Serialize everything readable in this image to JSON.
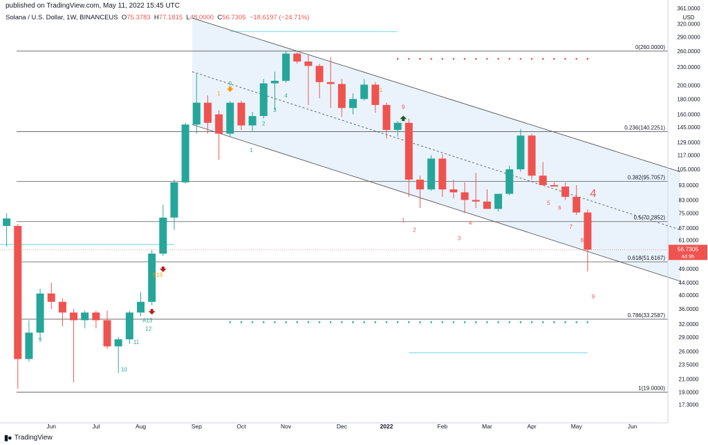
{
  "header": {
    "published": "published on TradingView.com, May 11, 2022 15:45 UTC",
    "symbol": "Solana / U.S. Dollar, 1W, BINANCEUS",
    "open_label": "O",
    "open": "75.3783",
    "high_label": "H",
    "high": "77.1815",
    "low_label": "L",
    "low": "48.0000",
    "close_label": "C",
    "close": "56.7305",
    "change": "−18.6197 (−24.71%)"
  },
  "footer": {
    "logo_text": "TradingView"
  },
  "colors": {
    "up": "#26a69a",
    "down": "#ef5350",
    "channel_fill": "#eaf3fb",
    "seq_orange": "#ff9800",
    "support_line": "#80deea"
  },
  "chart_data": {
    "type": "candlestick",
    "title": "Solana / U.S. Dollar, 1W, BINANCEUS",
    "y_scale": "log",
    "ylim": [
      16.0,
      361.0
    ],
    "y_axis_unit": "USD",
    "y_ticks": [
      "17.3000",
      "19.0000",
      "21.0000",
      "23.5000",
      "26.0000",
      "29.0000",
      "32.0000",
      "36.0000",
      "40.0000",
      "44.0000",
      "49.0000",
      "55.0000",
      "61.0000",
      "67.0000",
      "75.0000",
      "83.0000",
      "93.0000",
      "105.0000",
      "117.0000",
      "129.0000",
      "145.0000",
      "160.0000",
      "180.0000",
      "200.0000",
      "230.0000",
      "260.0000",
      "290.0000",
      "320.0000",
      "361.0000"
    ],
    "x_ticks": [
      {
        "label": "Jun",
        "i": 4
      },
      {
        "label": "Jul",
        "i": 8
      },
      {
        "label": "Aug",
        "i": 12
      },
      {
        "label": "Sep",
        "i": 17
      },
      {
        "label": "Oct",
        "i": 21
      },
      {
        "label": "Nov",
        "i": 25
      },
      {
        "label": "Dec",
        "i": 30
      },
      {
        "label": "2022",
        "i": 34
      },
      {
        "label": "Feb",
        "i": 39
      },
      {
        "label": "Mar",
        "i": 43
      },
      {
        "label": "Apr",
        "i": 47
      },
      {
        "label": "May",
        "i": 51
      },
      {
        "label": "Jun",
        "i": 56
      }
    ],
    "last_price_label": "56.7305",
    "countdown_label": "4d 9h",
    "candles": [
      {
        "o": 68.0,
        "h": 75.0,
        "l": 58.0,
        "c": 72.0
      },
      {
        "o": 68.0,
        "h": 69.0,
        "l": 19.5,
        "c": 24.5
      },
      {
        "o": 24.5,
        "h": 33.0,
        "l": 24.0,
        "c": 30.0
      },
      {
        "o": 30.0,
        "h": 42.0,
        "l": 28.5,
        "c": 40.5
      },
      {
        "o": 40.5,
        "h": 44.0,
        "l": 36.0,
        "c": 38.0
      },
      {
        "o": 38.0,
        "h": 39.0,
        "l": 31.5,
        "c": 35.0
      },
      {
        "o": 35.0,
        "h": 36.0,
        "l": 20.5,
        "c": 33.0
      },
      {
        "o": 33.0,
        "h": 35.5,
        "l": 31.0,
        "c": 35.0
      },
      {
        "o": 35.0,
        "h": 35.5,
        "l": 31.0,
        "c": 33.0
      },
      {
        "o": 33.0,
        "h": 35.5,
        "l": 26.5,
        "c": 27.0
      },
      {
        "o": 27.0,
        "h": 29.0,
        "l": 22.0,
        "c": 28.5
      },
      {
        "o": 28.5,
        "h": 35.5,
        "l": 27.5,
        "c": 35.0
      },
      {
        "o": 35.0,
        "h": 41.0,
        "l": 34.0,
        "c": 38.0
      },
      {
        "o": 38.0,
        "h": 56.5,
        "l": 37.0,
        "c": 55.0
      },
      {
        "o": 55.0,
        "h": 80.0,
        "l": 54.0,
        "c": 72.5
      },
      {
        "o": 72.5,
        "h": 97.0,
        "l": 66.0,
        "c": 95.0
      },
      {
        "o": 95.0,
        "h": 150.0,
        "l": 94.0,
        "c": 148.0
      },
      {
        "o": 148.0,
        "h": 218.0,
        "l": 138.0,
        "c": 175.0
      },
      {
        "o": 175.0,
        "h": 185.0,
        "l": 138.0,
        "c": 150.0
      },
      {
        "o": 160.0,
        "h": 165.0,
        "l": 113.0,
        "c": 138.0
      },
      {
        "o": 138.0,
        "h": 177.0,
        "l": 135.0,
        "c": 175.0
      },
      {
        "o": 175.0,
        "h": 178.0,
        "l": 142.0,
        "c": 147.0
      },
      {
        "o": 147.0,
        "h": 163.0,
        "l": 140.0,
        "c": 158.0
      },
      {
        "o": 158.0,
        "h": 210.0,
        "l": 155.0,
        "c": 203.0
      },
      {
        "o": 203.0,
        "h": 222.0,
        "l": 165.0,
        "c": 207.0
      },
      {
        "o": 207.0,
        "h": 260.0,
        "l": 204.0,
        "c": 255.0
      },
      {
        "o": 255.0,
        "h": 258.0,
        "l": 236.0,
        "c": 240.0
      },
      {
        "o": 240.0,
        "h": 252.0,
        "l": 172.0,
        "c": 232.0
      },
      {
        "o": 232.0,
        "h": 236.0,
        "l": 181.0,
        "c": 205.0
      },
      {
        "o": 205.0,
        "h": 248.0,
        "l": 168.0,
        "c": 202.0
      },
      {
        "o": 202.0,
        "h": 210.0,
        "l": 157.0,
        "c": 168.0
      },
      {
        "o": 168.0,
        "h": 188.0,
        "l": 160.0,
        "c": 180.0
      },
      {
        "o": 180.0,
        "h": 210.0,
        "l": 178.0,
        "c": 201.0
      },
      {
        "o": 201.0,
        "h": 205.0,
        "l": 162.0,
        "c": 172.0
      },
      {
        "o": 172.0,
        "h": 175.0,
        "l": 133.0,
        "c": 142.0
      },
      {
        "o": 142.0,
        "h": 152.0,
        "l": 135.0,
        "c": 150.0
      },
      {
        "o": 150.0,
        "h": 155.0,
        "l": 85.0,
        "c": 97.0
      },
      {
        "o": 97.0,
        "h": 100.0,
        "l": 78.0,
        "c": 90.0
      },
      {
        "o": 90.0,
        "h": 117.0,
        "l": 89.0,
        "c": 114.0
      },
      {
        "o": 114.0,
        "h": 118.0,
        "l": 85.0,
        "c": 90.0
      },
      {
        "o": 90.0,
        "h": 97.0,
        "l": 84.0,
        "c": 88.0
      },
      {
        "o": 88.0,
        "h": 95.0,
        "l": 75.0,
        "c": 83.0
      },
      {
        "o": 83.0,
        "h": 102.0,
        "l": 78.0,
        "c": 82.0
      },
      {
        "o": 82.0,
        "h": 90.0,
        "l": 78.0,
        "c": 77.5
      },
      {
        "o": 77.5,
        "h": 87.0,
        "l": 76.0,
        "c": 87.0
      },
      {
        "o": 87.0,
        "h": 108.0,
        "l": 86.0,
        "c": 105.0
      },
      {
        "o": 105.0,
        "h": 143.0,
        "l": 103.0,
        "c": 136.0
      },
      {
        "o": 136.0,
        "h": 138.0,
        "l": 97.0,
        "c": 100.0
      },
      {
        "o": 100.0,
        "h": 111.0,
        "l": 95.0,
        "c": 93.0
      },
      {
        "o": 93.0,
        "h": 95.0,
        "l": 92.0,
        "c": 92.0
      },
      {
        "o": 92.0,
        "h": 95.0,
        "l": 83.0,
        "c": 85.0
      },
      {
        "o": 85.0,
        "h": 93.0,
        "l": 74.0,
        "c": 75.4
      },
      {
        "o": 75.4,
        "h": 77.2,
        "l": 48.0,
        "c": 56.7
      }
    ],
    "fib_levels": [
      {
        "ratio": "0",
        "price": 260.0,
        "label": "0(260.0000)"
      },
      {
        "ratio": "0.236",
        "price": 140.2251,
        "label": "0.236(140.2251)"
      },
      {
        "ratio": "0.382",
        "price": 95.7057,
        "label": "0.382(95.7057)"
      },
      {
        "ratio": "0.5",
        "price": 70.2852,
        "label": "0.5(70.2852)"
      },
      {
        "ratio": "0.618",
        "price": 51.6167,
        "label": "0.618(51.6167)"
      },
      {
        "ratio": "0.786",
        "price": 33.2587,
        "label": "0.786(33.2587)"
      },
      {
        "ratio": "1",
        "price": 19.0,
        "label": "1(19.0000)"
      }
    ],
    "channel": {
      "upper": [
        {
          "i": 16.6,
          "p": 335.0
        },
        {
          "i": 60.3,
          "p": 103.0
        }
      ],
      "lower": [
        {
          "i": 16.6,
          "p": 148.0
        },
        {
          "i": 60.3,
          "p": 44.5
        }
      ],
      "mid": [
        {
          "i": 16.6,
          "p": 222.0
        },
        {
          "i": 60.3,
          "p": 66.0
        }
      ]
    },
    "horizontal_segments": [
      {
        "p": 302.0,
        "i0": 20.0,
        "i1": 35.0
      },
      {
        "p": 59.0,
        "i0": -1.0,
        "i1": 15.0
      },
      {
        "p": 25.7,
        "i0": 36.0,
        "i1": 52.0
      }
    ],
    "dotted_levels": [
      {
        "p": 245.0,
        "i0": 35.0,
        "i1": 52.0,
        "color": "#ef5350"
      },
      {
        "p": 32.5,
        "i0": 20.0,
        "i1": 52.0,
        "color": "#26a69a"
      }
    ],
    "sequential_labels": [
      {
        "i": 3,
        "p": 28.0,
        "text": "9",
        "color": "#26a69a"
      },
      {
        "i": 10.5,
        "p": 22.3,
        "text": "10",
        "color": "#26a69a"
      },
      {
        "i": 11.6,
        "p": 27.5,
        "text": "11",
        "color": "#26a69a"
      },
      {
        "i": 12.7,
        "p": 30.5,
        "text": "12",
        "color": "#26a69a"
      },
      {
        "i": 12.6,
        "p": 32.5,
        "text": "A13",
        "color": "#26a69a"
      },
      {
        "i": 13.5,
        "p": 46.0,
        "text": "S13",
        "color": "#ff9800"
      },
      {
        "i": 19.0,
        "p": 185.0,
        "text": "1",
        "color": "#ff9800"
      },
      {
        "i": 20.0,
        "p": 200.0,
        "text": "9",
        "color": "#26a69a"
      },
      {
        "i": 21.9,
        "p": 120.0,
        "text": "1",
        "color": "#26a69a"
      },
      {
        "i": 23.0,
        "p": 147.0,
        "text": "2",
        "color": "#26a69a"
      },
      {
        "i": 24.0,
        "p": 163.0,
        "text": "3",
        "color": "#26a69a"
      },
      {
        "i": 25.0,
        "p": 182.0,
        "text": "4",
        "color": "#26a69a"
      },
      {
        "i": 33.5,
        "p": 190.0,
        "text": "1",
        "color": "#ff9800"
      },
      {
        "i": 35.5,
        "p": 167.0,
        "text": "9",
        "color": "#ef5350"
      },
      {
        "i": 35.5,
        "p": 70.0,
        "text": "1",
        "color": "#ef5350"
      },
      {
        "i": 36.5,
        "p": 65.0,
        "text": "2",
        "color": "#ef5350"
      },
      {
        "i": 40.5,
        "p": 61.0,
        "text": "3",
        "color": "#ef5350"
      },
      {
        "i": 41.5,
        "p": 68.5,
        "text": "4",
        "color": "#ef5350"
      },
      {
        "i": 48.5,
        "p": 80.0,
        "text": "5",
        "color": "#ef5350"
      },
      {
        "i": 49.5,
        "p": 77.0,
        "text": "6",
        "color": "#ef5350"
      },
      {
        "i": 50.5,
        "p": 66.5,
        "text": "7",
        "color": "#ef5350"
      },
      {
        "i": 51.5,
        "p": 60.0,
        "text": "8",
        "color": "#ef5350"
      },
      {
        "i": 52.5,
        "p": 39.0,
        "text": "9",
        "color": "#ef5350"
      },
      {
        "i": 52.5,
        "p": 85.0,
        "text": "4",
        "color": "#ef5350",
        "large": true
      }
    ],
    "arrows": [
      {
        "i": 14.0,
        "p": 48.5,
        "dir": "down",
        "color": "#b71c1c"
      },
      {
        "i": 13.0,
        "p": 35.0,
        "dir": "down",
        "color": "#b71c1c"
      },
      {
        "i": 20.0,
        "p": 193.0,
        "dir": "down",
        "color": "#ff9800"
      },
      {
        "i": 35.5,
        "p": 156.0,
        "dir": "up",
        "color": "#1b5e20"
      }
    ]
  }
}
